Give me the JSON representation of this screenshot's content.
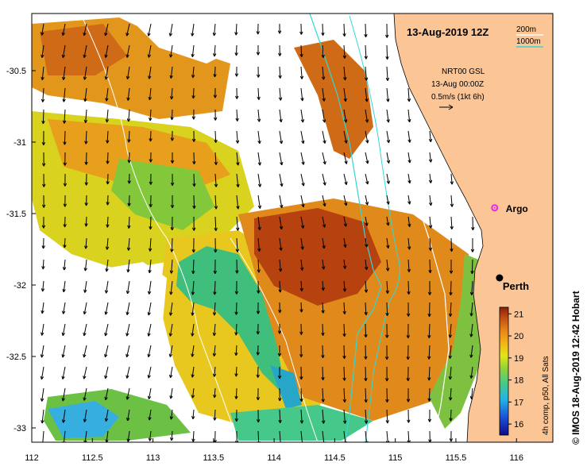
{
  "map": {
    "date_label": "13-Aug-2019 12Z",
    "isobath_legend": [
      {
        "label": "200m",
        "color": "#ffffff"
      },
      {
        "label": "1000m",
        "color": "#33d6d6"
      }
    ],
    "current_info": [
      "NRT00 GSL",
      "13-Aug 00:00Z",
      "0.5m/s (1kt 6h)"
    ],
    "places": [
      {
        "label": "Argo",
        "lon": 115.82,
        "lat": -31.46,
        "marker": "argo-float",
        "color": "#ee22ee"
      },
      {
        "label": "Perth",
        "lon": 115.86,
        "lat": -31.95,
        "marker": "city-dot",
        "color": "#000000"
      }
    ],
    "x_axis": {
      "ticks": [
        "112",
        "112.5",
        "113",
        "113.5",
        "114",
        "114.5",
        "115",
        "115.5",
        "116"
      ],
      "min": 112,
      "max": 116.3
    },
    "y_axis": {
      "ticks": [
        "-30.5",
        "-31",
        "-31.5",
        "-32",
        "-32.5",
        "-33"
      ],
      "min": -33.1,
      "max": -30.1
    },
    "colorbar": {
      "ticks": [
        "21",
        "20",
        "19",
        "18",
        "17",
        "16"
      ],
      "min": 15.5,
      "max": 21.3,
      "caption": "4h comp, p50, All Sats"
    },
    "credit": "© IMOS 18-Aug-2019 12:42 Hobart",
    "colors": {
      "land": "#fbc596",
      "ocean_cloud": "#ffffff",
      "shelf_contour": "#ffffff",
      "slope_contour": "#33d6d6"
    }
  }
}
